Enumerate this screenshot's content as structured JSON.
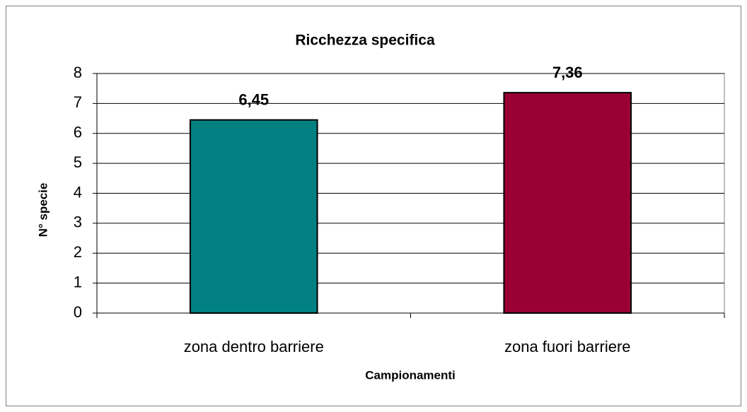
{
  "chart_data": {
    "type": "bar",
    "title": "Ricchezza specifica",
    "x_label": "Campionamenti",
    "y_label": "N° specie",
    "categories": [
      "zona dentro barriere",
      "zona fuori barriere"
    ],
    "values": [
      6.45,
      7.36
    ],
    "value_labels": [
      "6,45",
      "7,36"
    ],
    "colors": [
      "#008080",
      "#990033"
    ],
    "ylim": [
      0,
      8
    ],
    "yticks": [
      0,
      1,
      2,
      3,
      4,
      5,
      6,
      7,
      8
    ],
    "grid": true
  }
}
